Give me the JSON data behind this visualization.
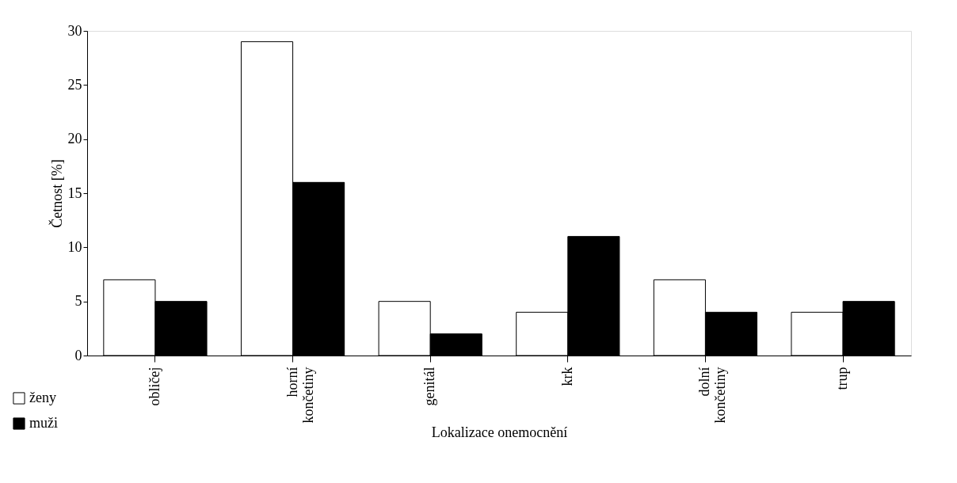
{
  "chart_data": {
    "type": "bar",
    "xlabel": "Lokalizace onemocnění",
    "ylabel": "Četnost [%]",
    "categories": [
      "obličej",
      "horní končetiny",
      "genitál",
      "krk",
      "dolní končetiny",
      "trup"
    ],
    "series": [
      {
        "name": "ženy",
        "color": "#ffffff",
        "values": [
          7,
          29,
          5,
          4,
          7,
          4
        ]
      },
      {
        "name": "muži",
        "color": "#000000",
        "values": [
          5,
          16,
          2,
          11,
          4,
          5
        ]
      }
    ],
    "ylim": [
      0,
      30
    ],
    "yticks": [
      0,
      5,
      10,
      15,
      20,
      25,
      30
    ],
    "grid": false,
    "legend": "bottom left"
  }
}
